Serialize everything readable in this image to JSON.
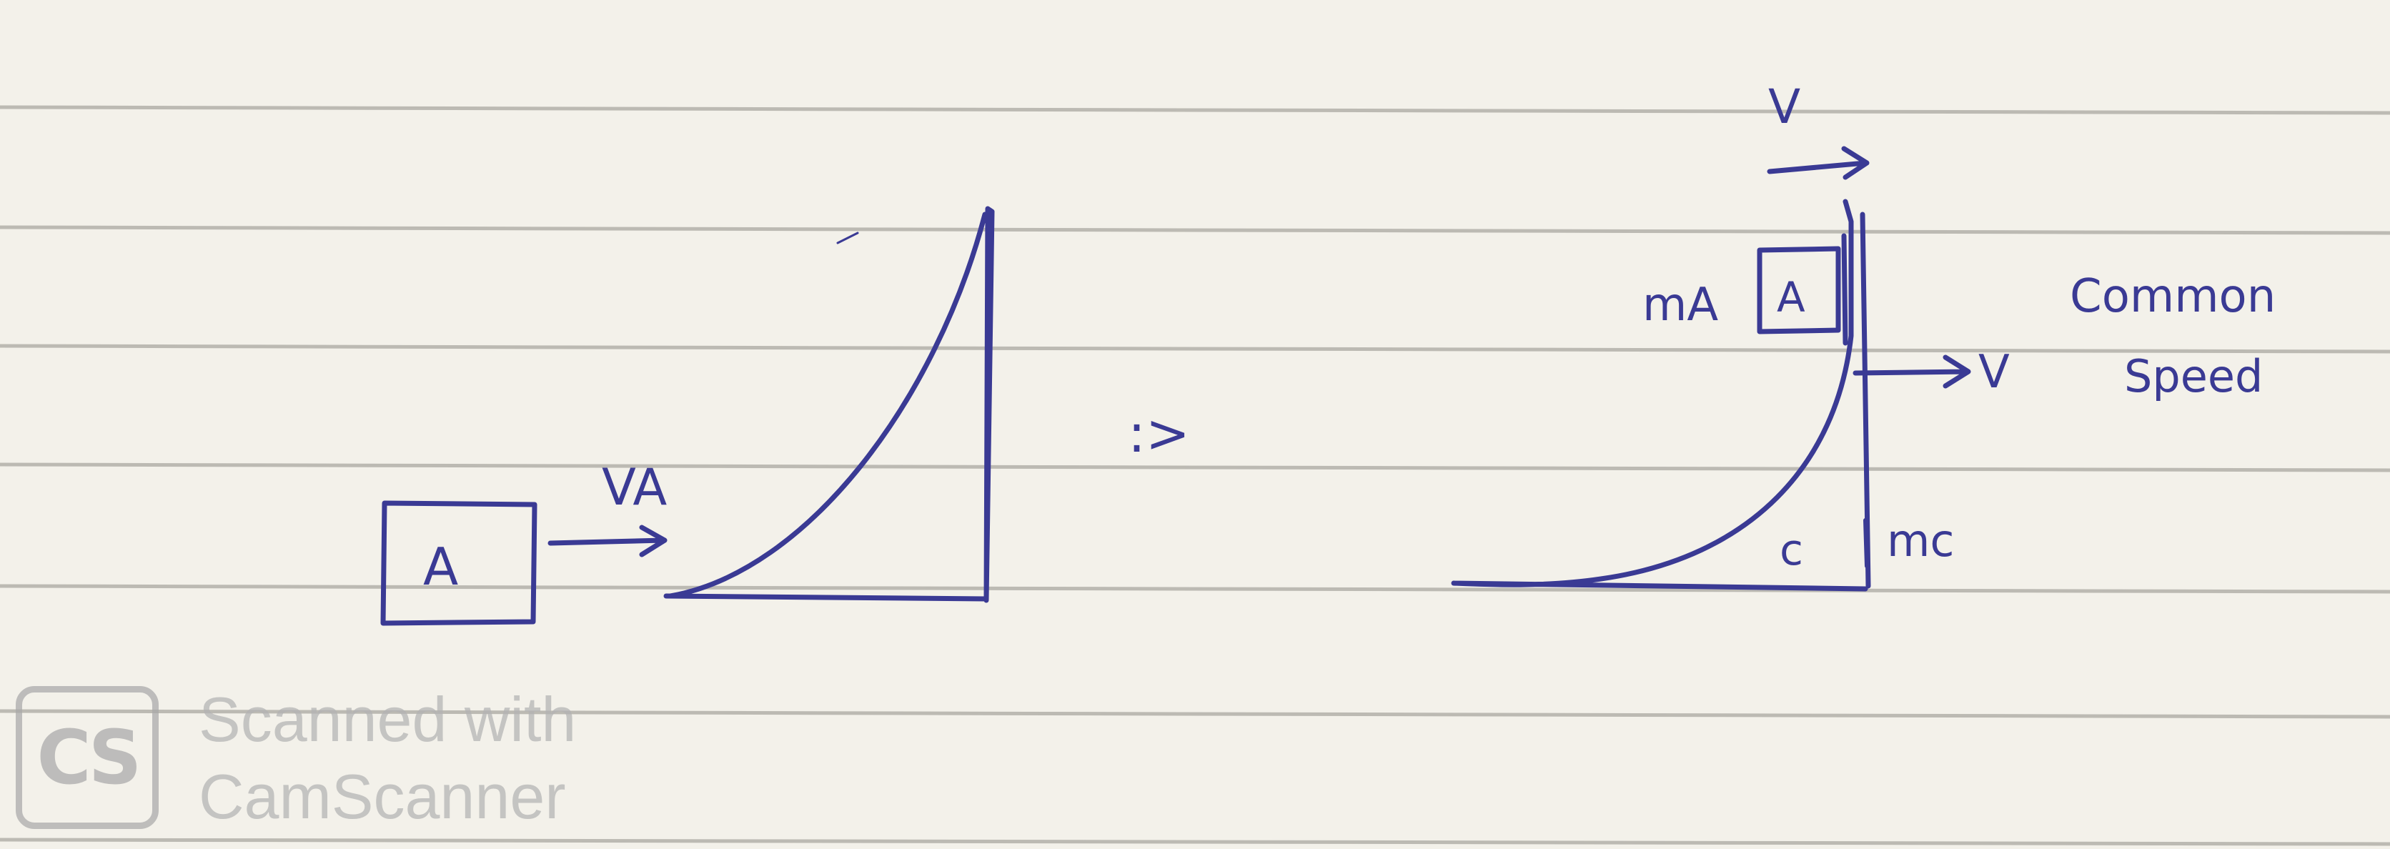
{
  "left_diagram": {
    "block_label": "A",
    "velocity_label": "VA"
  },
  "transition_symbol": ":>",
  "right_diagram": {
    "top_velocity_label": "V",
    "mass_a_label": "mA",
    "block_label": "A",
    "velocity_label": "V",
    "common_speed_line1": "Common",
    "common_speed_line2": "Speed",
    "wedge_label": "c",
    "mass_c_label": "mc"
  },
  "watermark": {
    "logo_text": "CS",
    "line1": "Scanned with",
    "line2": "CamScanner"
  },
  "colors": {
    "ink": "#3a3a94",
    "paper": "#f3f1ea",
    "ruled_line": "#bdbbb4",
    "watermark": "#a9a9a9"
  }
}
